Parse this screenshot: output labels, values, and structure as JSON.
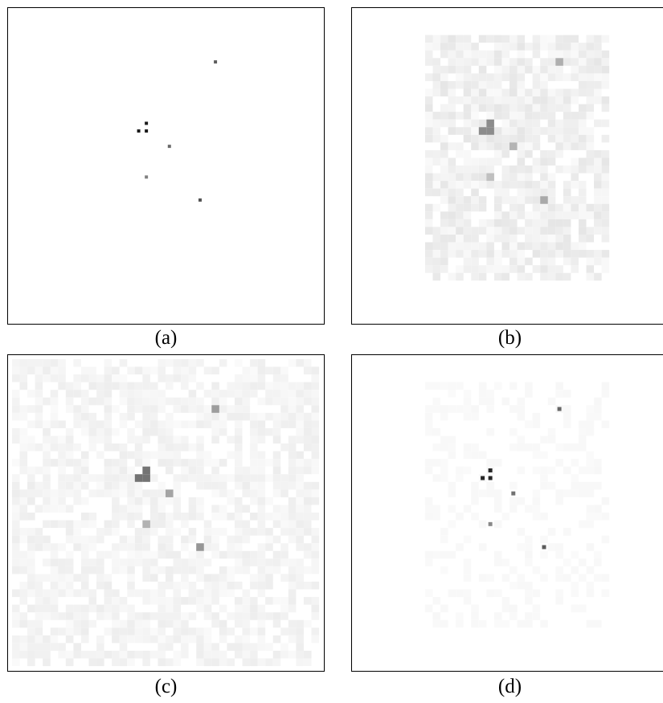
{
  "captions": {
    "a": "(a)",
    "b": "(b)",
    "c": "(c)",
    "d": "(d)"
  },
  "panels": [
    {
      "id": "a",
      "noise_level": 0.0,
      "noise_region": "none",
      "spot_intensity": 0.9
    },
    {
      "id": "b",
      "noise_level": 0.1,
      "noise_region": "inner",
      "spot_intensity": 0.45
    },
    {
      "id": "c",
      "noise_level": 0.07,
      "noise_region": "full",
      "spot_intensity": 0.55
    },
    {
      "id": "d",
      "noise_level": 0.03,
      "noise_region": "inner",
      "spot_intensity": 0.85
    }
  ],
  "spots": [
    {
      "i": 26,
      "j": 6,
      "strength": 0.7
    },
    {
      "i": 17,
      "j": 14,
      "strength": 1.0
    },
    {
      "i": 16,
      "j": 15,
      "strength": 1.0
    },
    {
      "i": 17,
      "j": 15,
      "strength": 1.0
    },
    {
      "i": 20,
      "j": 17,
      "strength": 0.65
    },
    {
      "i": 17,
      "j": 21,
      "strength": 0.55
    },
    {
      "i": 24,
      "j": 24,
      "strength": 0.75
    }
  ]
}
